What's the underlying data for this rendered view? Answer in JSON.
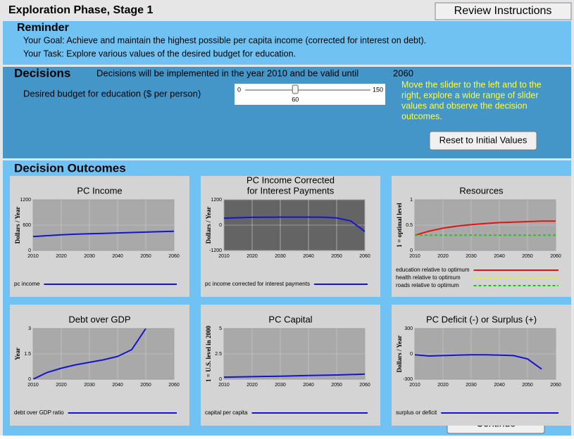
{
  "header": {
    "title": "Exploration Phase, Stage 1",
    "button": "Review Instructions"
  },
  "reminder": {
    "heading": "Reminder",
    "goal": "Your Goal: Achieve and maintain the highest possible per capita income (corrected for interest on debt).",
    "task": "Your Task: Explore various values of the desired budget for education."
  },
  "decisions": {
    "heading": "Decisions",
    "note": "Decisions will be implemented in the year 2010 and be valid until",
    "until": 2060,
    "slider": {
      "label": "Desired budget for education ($ per person)",
      "min": 0,
      "max": 150,
      "value": 60
    },
    "hint": [
      "Move the slider to the left and to the",
      "right, explore a wide range of slider",
      "values and observe the decision",
      "outcomes."
    ],
    "reset": "Reset to Initial Values"
  },
  "outcomes": {
    "heading": "Decision Outcomes",
    "continue": "Continue"
  },
  "chart_data": [
    {
      "type": "line",
      "title": [
        "PC Income"
      ],
      "ylabel": "Dollars / Year",
      "plot_bg": "#a9a9a9",
      "grid": true,
      "x": [
        2010,
        2015,
        2020,
        2025,
        2030,
        2035,
        2040,
        2045,
        2050,
        2055,
        2060
      ],
      "xlim": [
        2010,
        2060
      ],
      "xticks": [
        2010,
        2020,
        2030,
        2040,
        2050,
        2060
      ],
      "ylim": [
        0,
        1200
      ],
      "yticks": [
        0,
        600,
        1200
      ],
      "series": [
        {
          "name": "pc income",
          "color": "#1414d2",
          "values": [
            330,
            350,
            370,
            385,
            395,
            405,
            415,
            425,
            435,
            445,
            455
          ]
        }
      ]
    },
    {
      "type": "line",
      "title": [
        "PC Income Corrected",
        "for Interest Payments"
      ],
      "ylabel": "Dollars / Year",
      "plot_bg": "#646464",
      "grid": true,
      "x": [
        2010,
        2015,
        2020,
        2025,
        2030,
        2035,
        2040,
        2045,
        2050,
        2055,
        2060
      ],
      "xlim": [
        2010,
        2060
      ],
      "xticks": [
        2010,
        2020,
        2030,
        2040,
        2050,
        2060
      ],
      "ylim": [
        -1200,
        1200
      ],
      "yticks": [
        -1200,
        0,
        1200
      ],
      "series": [
        {
          "name": "pc income corrected for interest payments",
          "color": "#1414d2",
          "values": [
            330,
            350,
            370,
            375,
            380,
            380,
            380,
            375,
            340,
            200,
            -300
          ]
        }
      ]
    },
    {
      "type": "line",
      "title": [
        "Resources"
      ],
      "ylabel": "1 = optimal level",
      "plot_bg": "#a9a9a9",
      "grid": true,
      "x": [
        2010,
        2015,
        2020,
        2025,
        2030,
        2035,
        2040,
        2045,
        2050,
        2055,
        2060
      ],
      "xlim": [
        2010,
        2060
      ],
      "xticks": [
        2010,
        2020,
        2030,
        2040,
        2050,
        2060
      ],
      "ylim": [
        0,
        1
      ],
      "yticks": [
        0,
        0.5,
        1
      ],
      "series": [
        {
          "name": "education relative to optimum",
          "color": "#e01414",
          "dash": false,
          "values": [
            0.3,
            0.38,
            0.44,
            0.48,
            0.51,
            0.53,
            0.55,
            0.56,
            0.57,
            0.58,
            0.58
          ]
        },
        {
          "name": "health relative to optimum",
          "color": "#f0f014",
          "dash": true,
          "values": [
            0.3,
            0.3,
            0.3,
            0.3,
            0.3,
            0.3,
            0.3,
            0.3,
            0.3,
            0.3,
            0.3
          ]
        },
        {
          "name": "roads relative to optimum",
          "color": "#14c814",
          "dash": true,
          "values": [
            0.3,
            0.3,
            0.3,
            0.3,
            0.3,
            0.3,
            0.3,
            0.3,
            0.3,
            0.3,
            0.3
          ]
        }
      ]
    },
    {
      "type": "line",
      "title": [
        "Debt over GDP"
      ],
      "ylabel": "Year",
      "plot_bg": "#a9a9a9",
      "grid": true,
      "x": [
        2010,
        2015,
        2020,
        2025,
        2030,
        2035,
        2040,
        2045,
        2050,
        2055,
        2060
      ],
      "xlim": [
        2010,
        2060
      ],
      "xticks": [
        2010,
        2020,
        2030,
        2040,
        2050,
        2060
      ],
      "ylim": [
        0,
        3
      ],
      "yticks": [
        0,
        1.5,
        3
      ],
      "series": [
        {
          "name": "debt over GDP ratio",
          "color": "#1414d2",
          "values": [
            0,
            0.4,
            0.65,
            0.85,
            1.0,
            1.15,
            1.35,
            1.75,
            3,
            null,
            null
          ]
        }
      ]
    },
    {
      "type": "line",
      "title": [
        "PC Capital"
      ],
      "ylabel": "1 = U.S. level in 2000",
      "plot_bg": "#a9a9a9",
      "grid": true,
      "x": [
        2010,
        2015,
        2020,
        2025,
        2030,
        2035,
        2040,
        2045,
        2050,
        2055,
        2060
      ],
      "xlim": [
        2010,
        2060
      ],
      "xticks": [
        2010,
        2020,
        2030,
        2040,
        2050,
        2060
      ],
      "ylim": [
        0,
        5
      ],
      "yticks": [
        0,
        2.5,
        5
      ],
      "series": [
        {
          "name": "capital per capita",
          "color": "#1414d2",
          "values": [
            0.2,
            0.22,
            0.25,
            0.28,
            0.3,
            0.33,
            0.36,
            0.39,
            0.42,
            0.46,
            0.5
          ]
        }
      ]
    },
    {
      "type": "line",
      "title": [
        "PC Deficit (-) or Surplus (+)"
      ],
      "ylabel": "Dollars / Year",
      "plot_bg": "#a9a9a9",
      "grid": true,
      "x": [
        2010,
        2015,
        2020,
        2025,
        2030,
        2035,
        2040,
        2045,
        2050,
        2055,
        2060
      ],
      "xlim": [
        2010,
        2060
      ],
      "xticks": [
        2010,
        2020,
        2030,
        2040,
        2050,
        2060
      ],
      "ylim": [
        -300,
        300
      ],
      "yticks": [
        -300,
        0,
        300
      ],
      "series": [
        {
          "name": "surplus or deficit",
          "color": "#1414d2",
          "values": [
            -10,
            -25,
            -20,
            -15,
            -10,
            -10,
            -15,
            -20,
            -60,
            -180,
            null
          ]
        }
      ]
    }
  ]
}
